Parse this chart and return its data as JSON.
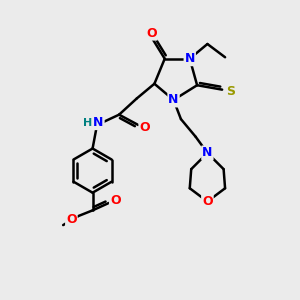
{
  "bg_color": "#ebebeb",
  "atom_colors": {
    "C": "#000000",
    "N": "#0000ff",
    "O": "#ff0000",
    "S": "#999900",
    "H": "#008080"
  },
  "bond_color": "#000000",
  "bond_width": 1.8,
  "font_size": 8.5
}
